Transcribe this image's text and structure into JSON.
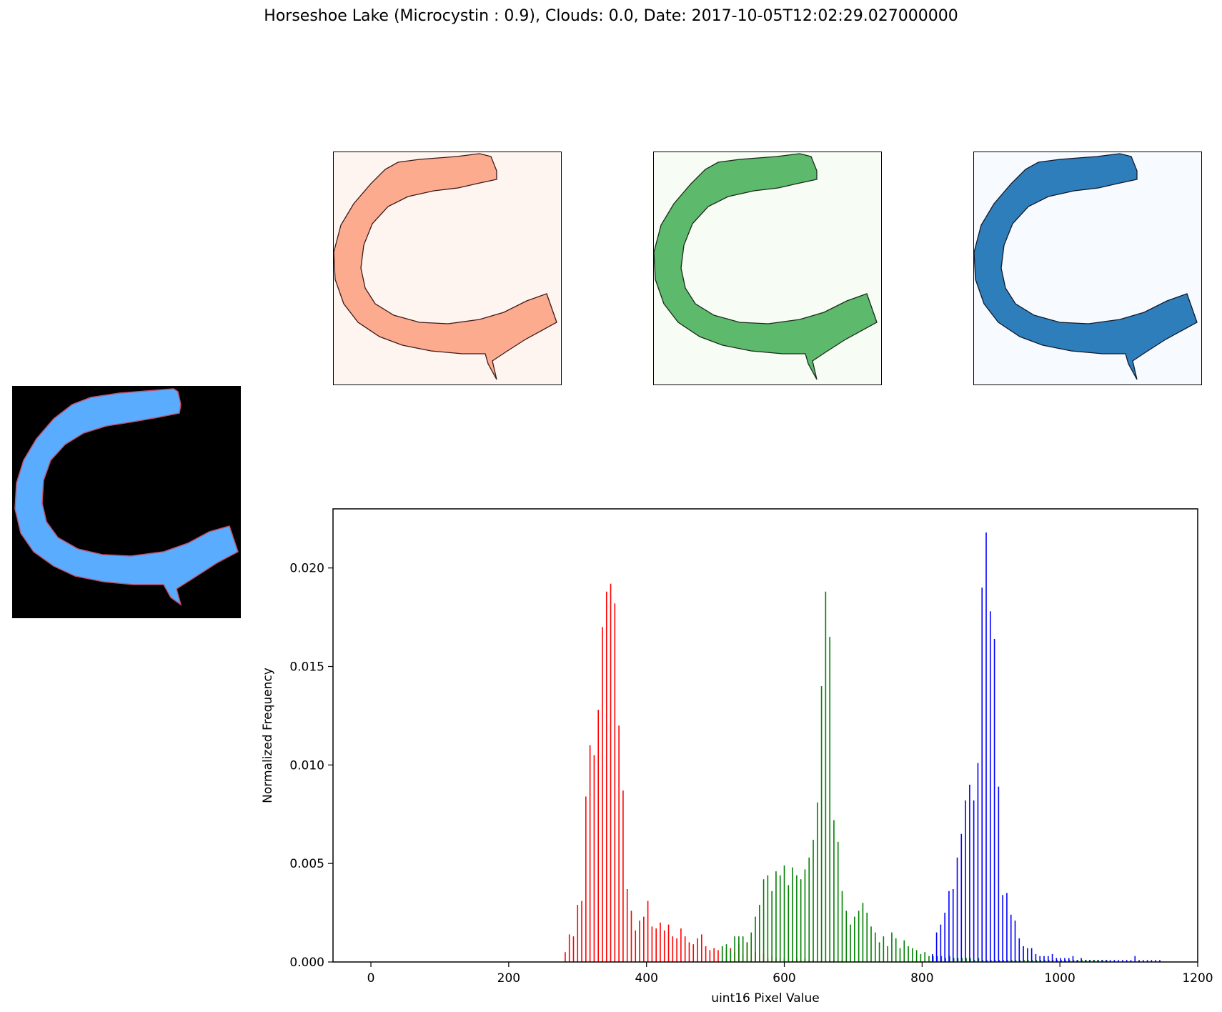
{
  "title": "Horseshoe Lake (Microcystin : 0.9), Clouds: 0.0, Date: 2017-10-05T12:02:29.027000000",
  "images": {
    "rgb": {
      "background": "#000000",
      "fill": "#5aacff",
      "edge": "#c05070"
    },
    "red": {
      "background": "#fff5f0",
      "fill": "#fcab8f",
      "edge": "#67000d"
    },
    "green": {
      "background": "#f7fcf5",
      "fill": "#5db96b",
      "edge": "#00441b"
    },
    "blue": {
      "background": "#f7fbff",
      "fill": "#2f7ebc",
      "edge": "#08306b"
    }
  },
  "chart_data": {
    "type": "bar",
    "xlabel": "uint16 Pixel Value",
    "ylabel": "Normalized Frequency",
    "xlim": [
      -55,
      1200
    ],
    "ylim": [
      0,
      0.023
    ],
    "xticks": [
      0,
      200,
      400,
      600,
      800,
      1000,
      1200
    ],
    "yticks": [
      "0.000",
      "0.005",
      "0.010",
      "0.015",
      "0.020"
    ],
    "series": [
      {
        "color": "#ff0000",
        "x": [
          282,
          288,
          294,
          300,
          306,
          312,
          318,
          324,
          330,
          336,
          342,
          348,
          354,
          360,
          366,
          372,
          378,
          384,
          390,
          396,
          402,
          408,
          414,
          420,
          426,
          432,
          438,
          444,
          450,
          456,
          462,
          468,
          474,
          480,
          486,
          492,
          498,
          504,
          510,
          516,
          522,
          528,
          534,
          540,
          546,
          552,
          558,
          564,
          570,
          576,
          582,
          588,
          594,
          600,
          606,
          612,
          618,
          624,
          630,
          636,
          642,
          648,
          654,
          660,
          666,
          672,
          678,
          684,
          690
        ],
        "values": [
          0.0005,
          0.0014,
          0.0013,
          0.0029,
          0.0031,
          0.0084,
          0.011,
          0.0105,
          0.0128,
          0.017,
          0.0188,
          0.0192,
          0.0182,
          0.012,
          0.0087,
          0.0037,
          0.0026,
          0.0016,
          0.0021,
          0.0023,
          0.0031,
          0.0018,
          0.0017,
          0.002,
          0.0016,
          0.0019,
          0.0013,
          0.0012,
          0.0017,
          0.0013,
          0.001,
          0.0009,
          0.0012,
          0.0014,
          0.0008,
          0.0006,
          0.0007,
          0.0006,
          0.0008,
          0.0006,
          0.0007,
          0.0005,
          0.0009,
          0.0004,
          0.001,
          0.0003,
          0.0005,
          0.0003,
          0.0004,
          0.0002,
          0.0003,
          0.0002,
          0.0002,
          0.0002,
          0.0003,
          0.0001,
          0.0002,
          0.0001,
          0.0002,
          0.0001,
          0.0001,
          0.0001,
          0.0001,
          0.0001,
          0.0001,
          0.0001,
          0.0001,
          0.0001,
          0.0001
        ]
      },
      {
        "color": "#008000",
        "x": [
          510,
          516,
          522,
          528,
          534,
          540,
          546,
          552,
          558,
          564,
          570,
          576,
          582,
          588,
          594,
          600,
          606,
          612,
          618,
          624,
          630,
          636,
          642,
          648,
          654,
          660,
          666,
          672,
          678,
          684,
          690,
          696,
          702,
          708,
          714,
          720,
          726,
          732,
          738,
          744,
          750,
          756,
          762,
          768,
          774,
          780,
          786,
          792,
          798,
          804,
          810,
          816,
          822,
          828,
          834,
          840,
          846,
          852,
          858,
          864,
          870,
          876,
          882,
          888,
          894,
          900,
          906,
          912,
          918,
          924,
          930,
          936,
          942,
          948,
          954,
          960,
          966,
          972,
          978,
          984,
          990,
          996,
          1002,
          1008,
          1014,
          1020,
          1026,
          1032,
          1038,
          1044,
          1050,
          1056,
          1062,
          1068
        ],
        "values": [
          0.0008,
          0.0009,
          0.0006,
          0.0013,
          0.0013,
          0.0013,
          0.001,
          0.0015,
          0.0023,
          0.0029,
          0.0042,
          0.0044,
          0.0036,
          0.0046,
          0.0044,
          0.0049,
          0.0039,
          0.0048,
          0.0044,
          0.0042,
          0.0047,
          0.0053,
          0.0062,
          0.0081,
          0.014,
          0.0188,
          0.0165,
          0.0072,
          0.0061,
          0.0036,
          0.0026,
          0.0019,
          0.0023,
          0.0026,
          0.003,
          0.0025,
          0.0018,
          0.0015,
          0.001,
          0.0013,
          0.0008,
          0.0015,
          0.0012,
          0.0007,
          0.0011,
          0.0008,
          0.0007,
          0.0006,
          0.0004,
          0.0005,
          0.0003,
          0.0003,
          0.0003,
          0.0003,
          0.0002,
          0.0003,
          0.0002,
          0.0002,
          0.0002,
          0.0002,
          0.0002,
          0.0001,
          0.0002,
          0.0001,
          0.0001,
          0.0001,
          0.0001,
          0.0001,
          0.0001,
          0.0001,
          0.0001,
          0.0001,
          0.0001,
          0.0001,
          0.0001,
          0.0001,
          0.0001,
          0.0001,
          0.0001,
          0.0001,
          0.0001,
          0.0001,
          0.0001,
          0.0001,
          0.0001,
          0.0001,
          0.0001,
          0.0001,
          0.0001,
          0.0001,
          0.0001,
          0.0001,
          0.0001,
          0.0001
        ]
      },
      {
        "color": "#0000ff",
        "x": [
          815,
          821,
          827,
          833,
          839,
          845,
          851,
          857,
          863,
          869,
          875,
          881,
          887,
          893,
          899,
          905,
          911,
          917,
          923,
          929,
          935,
          941,
          947,
          953,
          959,
          965,
          971,
          977,
          983,
          989,
          995,
          1001,
          1007,
          1013,
          1019,
          1025,
          1031,
          1037,
          1043,
          1049,
          1055,
          1061,
          1067,
          1073,
          1079,
          1085,
          1091,
          1097,
          1103,
          1109,
          1115,
          1121,
          1127,
          1133,
          1139,
          1145
        ],
        "values": [
          0.0004,
          0.0015,
          0.0019,
          0.0025,
          0.0036,
          0.0037,
          0.0053,
          0.0065,
          0.0082,
          0.009,
          0.0082,
          0.0101,
          0.019,
          0.0218,
          0.0178,
          0.0164,
          0.0089,
          0.0034,
          0.0035,
          0.0024,
          0.0021,
          0.0012,
          0.0008,
          0.0007,
          0.0007,
          0.0004,
          0.0003,
          0.0003,
          0.0003,
          0.0004,
          0.0002,
          0.0002,
          0.0002,
          0.0002,
          0.0003,
          0.0001,
          0.0002,
          0.0001,
          0.0001,
          0.0001,
          0.0001,
          0.0001,
          0.0001,
          0.0001,
          0.0001,
          0.0001,
          0.0001,
          0.0001,
          0.0001,
          0.0003,
          0.0001,
          0.0001,
          0.0001,
          0.0001,
          0.0001,
          0.0001
        ]
      }
    ]
  }
}
